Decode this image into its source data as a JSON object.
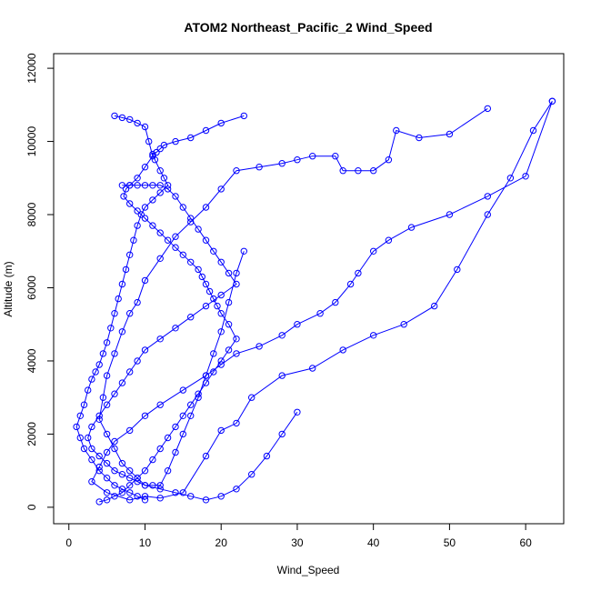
{
  "chart_data": {
    "type": "line",
    "title": "ATOM2 Northeast_Pacific_2 Wind_Speed",
    "xlabel": "Wind_Speed",
    "ylabel": "Altitude (m)",
    "xlim": [
      -2,
      65
    ],
    "ylim": [
      -450,
      12400
    ],
    "xticks": [
      0,
      10,
      20,
      30,
      40,
      50,
      60
    ],
    "yticks": [
      0,
      2000,
      4000,
      6000,
      8000,
      10000,
      12000
    ],
    "grid": false,
    "legend": "none",
    "colors": {
      "series": "#0000ff",
      "axis": "#000000"
    },
    "series": [
      {
        "marker": "open-circle",
        "x": [
          63.5,
          60,
          55,
          50,
          45,
          42,
          40,
          38,
          37,
          35,
          33,
          30,
          28,
          25,
          22,
          20,
          18,
          15,
          12,
          10,
          8,
          6,
          5,
          4,
          3,
          5,
          8,
          10,
          12,
          15,
          18,
          20,
          22,
          24,
          28,
          32,
          36,
          40,
          44,
          48,
          51,
          55,
          58,
          61,
          63.5
        ],
        "y": [
          11100,
          9050,
          8500,
          8000,
          7650,
          7300,
          7000,
          6400,
          6100,
          5600,
          5300,
          5000,
          4700,
          4400,
          4200,
          3900,
          3600,
          3200,
          2800,
          2500,
          2100,
          1800,
          1500,
          1100,
          700,
          400,
          200,
          300,
          250,
          400,
          1400,
          2100,
          2300,
          3000,
          3600,
          3800,
          4300,
          4700,
          5000,
          5500,
          6500,
          8000,
          9000,
          10300,
          11100
        ]
      },
      {
        "marker": "open-circle",
        "x": [
          55,
          50,
          46,
          43,
          42,
          40,
          38,
          36,
          35,
          32,
          30,
          28,
          25,
          22,
          20,
          18,
          16,
          14,
          12,
          10,
          9,
          8,
          7,
          6,
          5,
          4.5,
          4,
          5,
          6,
          7,
          8,
          9,
          10,
          11,
          12,
          13,
          14,
          15,
          16,
          17,
          18,
          19,
          20,
          21,
          22,
          23
        ],
        "y": [
          10900,
          10200,
          10100,
          10300,
          9500,
          9200,
          9200,
          9200,
          9600,
          9600,
          9500,
          9400,
          9300,
          9200,
          8700,
          8200,
          7800,
          7400,
          6800,
          6200,
          5600,
          5300,
          4800,
          4200,
          3600,
          3000,
          2400,
          2000,
          1600,
          1200,
          1000,
          800,
          600,
          600,
          600,
          1000,
          1500,
          2000,
          2500,
          3000,
          3600,
          4200,
          4800,
          5600,
          6400,
          7000
        ]
      },
      {
        "marker": "open-circle",
        "x": [
          23,
          20,
          18,
          16,
          14,
          12.5,
          12,
          11.5,
          11,
          11.3,
          12,
          12.5,
          13,
          12,
          11,
          10,
          9.5,
          9,
          8.5,
          8,
          7.5,
          7,
          6.5,
          6,
          5.5,
          5,
          4.5,
          4,
          3.5,
          3,
          2.5,
          2,
          1.5,
          1,
          1.5,
          2,
          3,
          4,
          5,
          6,
          7,
          8,
          9,
          10
        ],
        "y": [
          10700,
          10500,
          10300,
          10100,
          10000,
          9900,
          9800,
          9700,
          9650,
          9500,
          9200,
          9000,
          8800,
          8600,
          8400,
          8200,
          8000,
          7700,
          7300,
          6900,
          6500,
          6100,
          5700,
          5300,
          4900,
          4500,
          4200,
          3900,
          3700,
          3500,
          3200,
          2800,
          2500,
          2200,
          1900,
          1600,
          1300,
          1000,
          800,
          600,
          500,
          400,
          300,
          200
        ]
      },
      {
        "marker": "open-circle",
        "x": [
          6,
          7,
          8,
          9,
          10,
          10.5,
          11,
          10,
          9,
          8,
          7.5,
          7.2,
          8,
          9,
          10,
          11,
          12,
          13,
          14,
          15,
          16,
          17,
          17.5,
          18,
          18.5,
          19,
          19.5,
          20,
          21,
          22,
          21,
          20,
          19,
          18,
          17,
          16,
          15,
          14,
          13,
          12,
          11,
          10,
          9,
          8,
          7,
          6,
          5,
          4
        ],
        "y": [
          10700,
          10650,
          10600,
          10500,
          10400,
          10000,
          9600,
          9300,
          9000,
          8800,
          8700,
          8500,
          8300,
          8100,
          7900,
          7700,
          7500,
          7300,
          7100,
          6900,
          6700,
          6500,
          6300,
          6100,
          5900,
          5700,
          5500,
          5300,
          5000,
          4600,
          4300,
          4000,
          3700,
          3400,
          3100,
          2800,
          2500,
          2200,
          1900,
          1600,
          1300,
          1000,
          800,
          600,
          400,
          300,
          200,
          150
        ]
      },
      {
        "marker": "open-circle",
        "x": [
          7,
          8,
          9,
          10,
          11,
          12,
          13,
          14,
          15,
          16,
          17,
          18,
          19,
          20,
          21,
          22,
          20,
          18,
          16,
          14,
          12,
          10,
          9,
          8,
          7,
          6,
          5,
          4,
          3,
          2.5,
          3,
          4,
          5,
          6,
          7,
          8,
          9,
          10,
          12,
          14,
          16,
          18,
          20,
          22,
          24,
          26,
          28,
          30
        ],
        "y": [
          8800,
          8800,
          8800,
          8800,
          8800,
          8800,
          8700,
          8500,
          8200,
          7900,
          7600,
          7300,
          7000,
          6700,
          6400,
          6100,
          5800,
          5500,
          5200,
          4900,
          4600,
          4300,
          4000,
          3700,
          3400,
          3100,
          2800,
          2500,
          2200,
          1900,
          1600,
          1400,
          1200,
          1000,
          900,
          800,
          700,
          600,
          500,
          400,
          300,
          200,
          300,
          500,
          900,
          1400,
          2000,
          2600
        ]
      }
    ]
  }
}
